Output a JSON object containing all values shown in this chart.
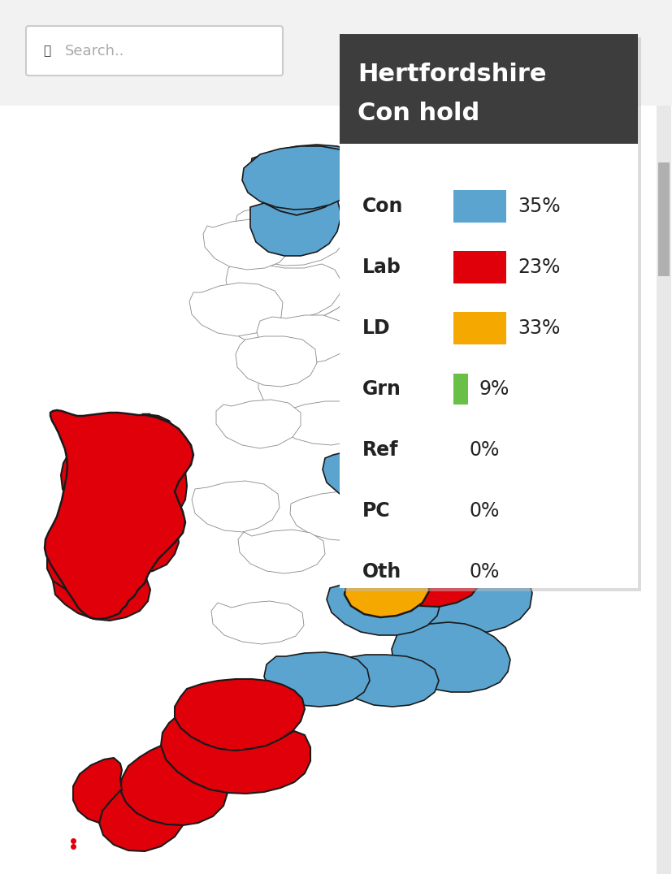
{
  "title_line1": "Hertfordshire",
  "title_line2": "Con hold",
  "title_bg": "#3d3d3d",
  "title_text_color": "#ffffff",
  "popup_bg": "#ffffff",
  "parties": [
    "Con",
    "Lab",
    "LD",
    "Grn",
    "Ref",
    "PC",
    "Oth"
  ],
  "values": [
    "35%",
    "23%",
    "33%",
    "9%",
    "0%",
    "0%",
    "0%"
  ],
  "colors": [
    "#5ba4cf",
    "#e0000a",
    "#f5a800",
    "#6abf47",
    null,
    null,
    null
  ],
  "search_box_text": "Search..",
  "bg_color": "#f2f2f2",
  "map_bg": "#ffffff",
  "scrollbar_color": "#b0b0b0",
  "con_color": "#5ba4cf",
  "lab_color": "#e0000a",
  "ld_color": "#f5a800",
  "outline_color": "#000000",
  "region_outline": "#1a1a1a",
  "white_outline": "#aaaaaa"
}
